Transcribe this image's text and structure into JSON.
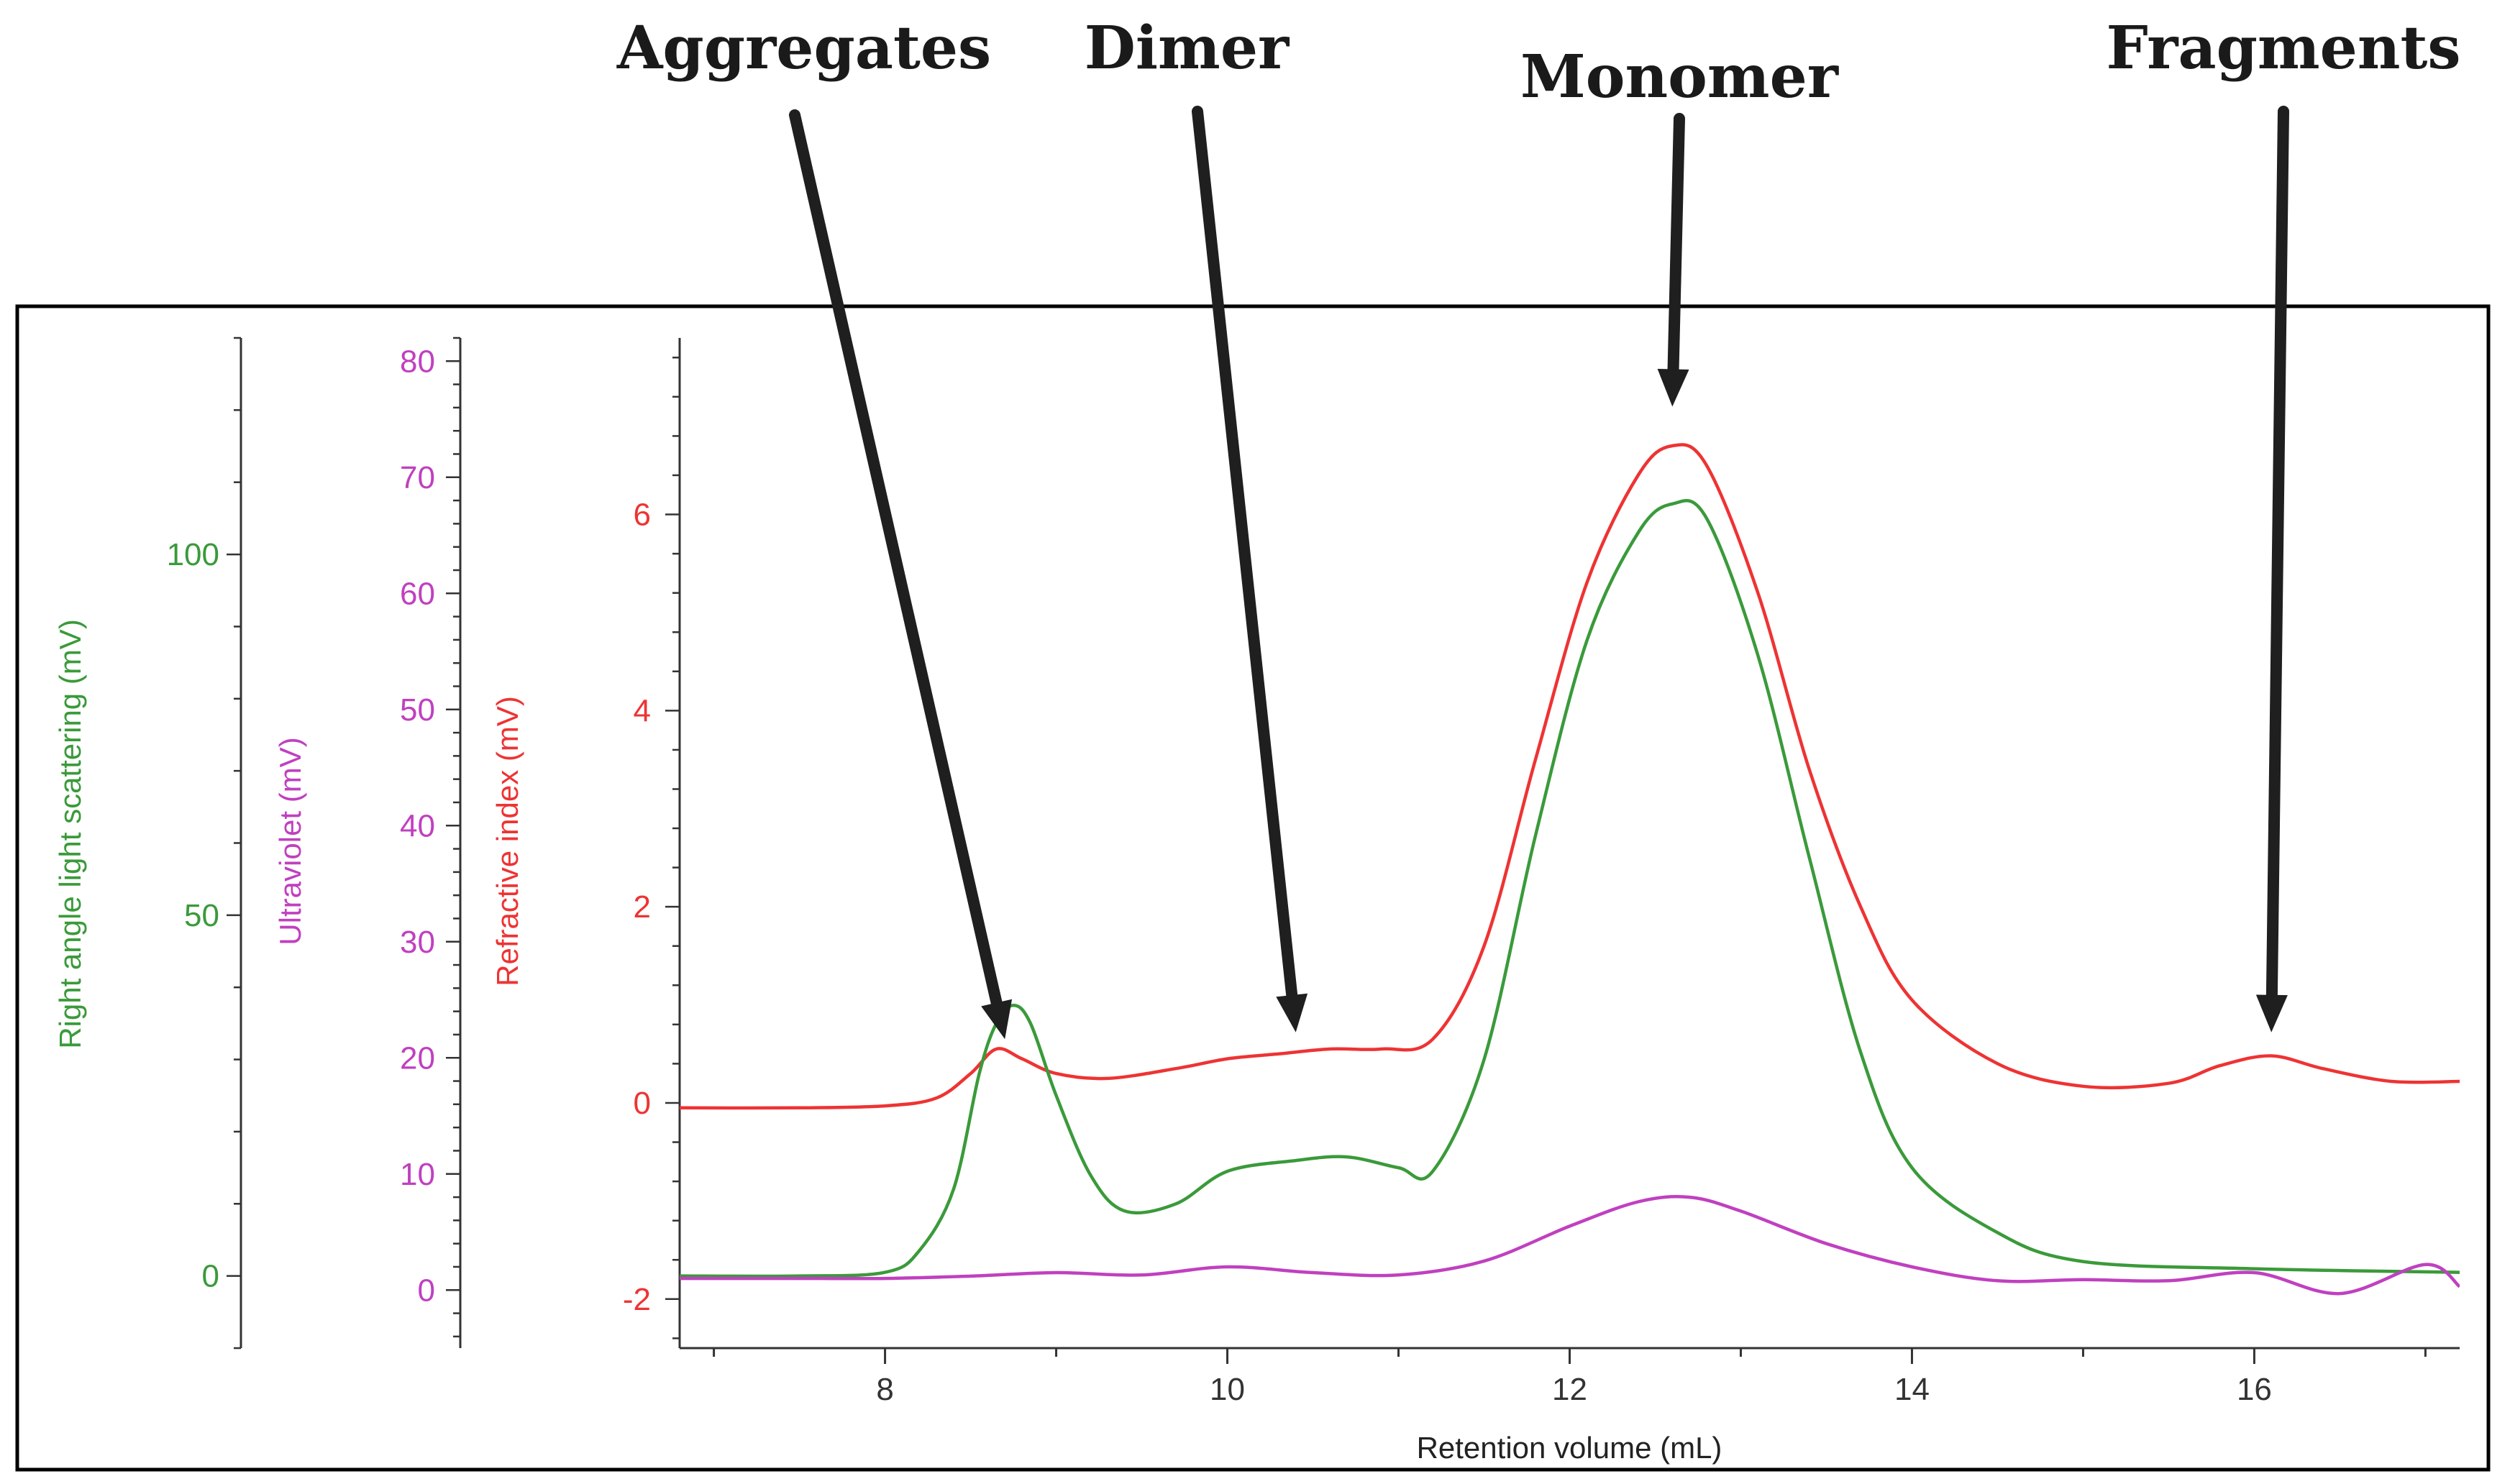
{
  "chart_data": {
    "type": "line",
    "xlabel": "Retention volume (mL)",
    "xlim": [
      6.8,
      17.2
    ],
    "x_ticks": [
      8,
      10,
      12,
      14,
      16
    ],
    "axes": [
      {
        "key": "rals",
        "label": "Right angle light scattering (mV)",
        "color": "#3a9a3a",
        "ylim": [
          -10,
          130
        ],
        "ticks": [
          0,
          50,
          100
        ]
      },
      {
        "key": "uv",
        "label": "Ultraviolet (mV)",
        "color": "#c040c0",
        "ylim": [
          -5,
          82
        ],
        "ticks": [
          0,
          10,
          20,
          30,
          40,
          50,
          60,
          70,
          80
        ]
      },
      {
        "key": "ri",
        "label": "Refractive index (mV)",
        "color": "#ee3333",
        "ylim": [
          -2.5,
          7.8
        ],
        "ticks": [
          -2,
          0,
          2,
          4,
          6
        ]
      }
    ],
    "series": [
      {
        "name": "Refractive index",
        "axis": "ri",
        "color": "#ee3333",
        "x": [
          6.8,
          7.5,
          8.0,
          8.3,
          8.5,
          8.65,
          8.8,
          9.0,
          9.3,
          9.7,
          10.0,
          10.3,
          10.6,
          10.9,
          11.2,
          11.5,
          11.8,
          12.1,
          12.4,
          12.6,
          12.8,
          13.1,
          13.4,
          13.7,
          14.0,
          14.5,
          15.0,
          15.5,
          15.8,
          16.1,
          16.4,
          16.8,
          17.2
        ],
        "y": [
          -0.05,
          -0.05,
          -0.03,
          0.05,
          0.3,
          0.55,
          0.45,
          0.3,
          0.25,
          0.35,
          0.45,
          0.5,
          0.55,
          0.55,
          0.65,
          1.6,
          3.5,
          5.3,
          6.4,
          6.7,
          6.5,
          5.2,
          3.4,
          2.0,
          1.05,
          0.4,
          0.17,
          0.2,
          0.38,
          0.48,
          0.35,
          0.22,
          0.22
        ]
      },
      {
        "name": "Right angle light scattering",
        "axis": "rals",
        "color": "#3a9a3a",
        "x": [
          6.8,
          7.5,
          8.0,
          8.2,
          8.4,
          8.55,
          8.65,
          8.75,
          8.85,
          9.0,
          9.2,
          9.4,
          9.7,
          10.0,
          10.4,
          10.7,
          11.0,
          11.2,
          11.5,
          11.8,
          12.1,
          12.4,
          12.6,
          12.8,
          13.1,
          13.4,
          13.7,
          14.0,
          14.5,
          15.0,
          16.0,
          17.2
        ],
        "y": [
          0,
          0,
          0.5,
          3.5,
          12,
          28,
          35,
          37.5,
          35,
          25,
          14,
          9,
          10,
          14.5,
          16,
          16.5,
          15,
          14.5,
          30,
          61,
          88,
          103,
          107,
          105,
          86,
          58,
          31,
          15,
          6,
          2,
          1,
          0.5
        ]
      },
      {
        "name": "Ultraviolet",
        "axis": "uv",
        "color": "#c040c0",
        "x": [
          6.8,
          7.5,
          8.0,
          8.5,
          9.0,
          9.5,
          10.0,
          10.5,
          11.0,
          11.5,
          12.0,
          12.4,
          12.7,
          13.0,
          13.5,
          14.0,
          14.5,
          15.0,
          15.5,
          16.0,
          16.5,
          17.0,
          17.2
        ],
        "y": [
          1,
          1,
          1,
          1.2,
          1.5,
          1.3,
          2.0,
          1.5,
          1.3,
          2.5,
          5.5,
          7.6,
          8.0,
          6.8,
          4.0,
          2.0,
          0.8,
          0.9,
          0.8,
          1.5,
          -0.3,
          2.2,
          0.3
        ]
      }
    ],
    "annotations": [
      {
        "label": "Aggregates",
        "x": 8.7,
        "axis": "ri",
        "y": 0.65
      },
      {
        "label": "Dimer",
        "x": 10.4,
        "axis": "ri",
        "y": 0.72
      },
      {
        "label": "Monomer",
        "x": 12.6,
        "axis": "ri",
        "y": 7.1
      },
      {
        "label": "Fragments",
        "x": 16.1,
        "axis": "ri",
        "y": 0.72
      }
    ]
  },
  "colors": {
    "frame": "#000000",
    "axis": "#333333",
    "arrow": "#1f1f1f"
  }
}
